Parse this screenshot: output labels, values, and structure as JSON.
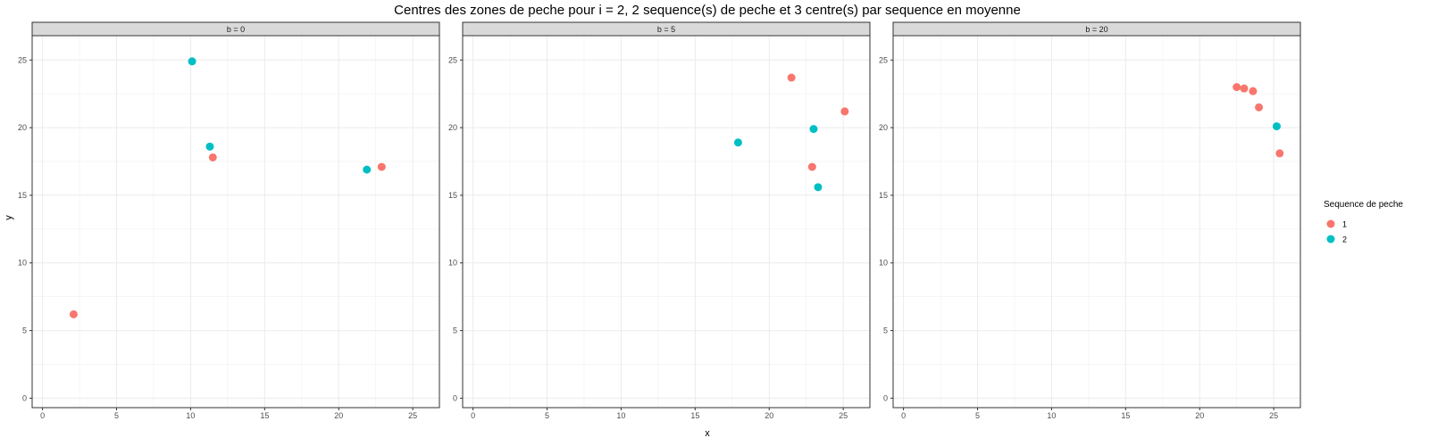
{
  "chart_data": {
    "type": "scatter",
    "title": "Centres des zones de peche pour i = 2, 2 sequence(s) de peche et 3 centre(s) par sequence en moyenne",
    "xlabel": "x",
    "ylabel": "y",
    "xlim": [
      -0.7,
      26.8
    ],
    "ylim": [
      -0.7,
      26.8
    ],
    "x_ticks": [
      0,
      5,
      10,
      15,
      20,
      25
    ],
    "y_ticks": [
      0,
      5,
      10,
      15,
      20,
      25
    ],
    "grid": true,
    "legend": {
      "title": "Sequence de peche",
      "position": "right",
      "entries": [
        {
          "label": "1",
          "color": "#F8766D"
        },
        {
          "label": "2",
          "color": "#00BFC4"
        }
      ]
    },
    "facets": [
      {
        "label": "b = 0",
        "series": [
          {
            "name": "1",
            "points": [
              {
                "x": 2.1,
                "y": 6.2
              },
              {
                "x": 11.5,
                "y": 17.8
              },
              {
                "x": 22.9,
                "y": 17.1
              }
            ]
          },
          {
            "name": "2",
            "points": [
              {
                "x": 10.1,
                "y": 24.9
              },
              {
                "x": 11.3,
                "y": 18.6
              },
              {
                "x": 21.9,
                "y": 16.9
              }
            ]
          }
        ]
      },
      {
        "label": "b = 5",
        "series": [
          {
            "name": "1",
            "points": [
              {
                "x": 21.5,
                "y": 23.7
              },
              {
                "x": 25.1,
                "y": 21.2
              },
              {
                "x": 22.9,
                "y": 17.1
              }
            ]
          },
          {
            "name": "2",
            "points": [
              {
                "x": 17.9,
                "y": 18.9
              },
              {
                "x": 23.0,
                "y": 19.9
              },
              {
                "x": 23.3,
                "y": 15.6
              }
            ]
          }
        ]
      },
      {
        "label": "b = 20",
        "series": [
          {
            "name": "1",
            "points": [
              {
                "x": 22.5,
                "y": 23.0
              },
              {
                "x": 23.0,
                "y": 22.9
              },
              {
                "x": 23.6,
                "y": 22.7
              },
              {
                "x": 24.0,
                "y": 21.5
              },
              {
                "x": 25.4,
                "y": 18.1
              }
            ]
          },
          {
            "name": "2",
            "points": [
              {
                "x": 25.2,
                "y": 20.1
              }
            ]
          }
        ]
      }
    ]
  }
}
